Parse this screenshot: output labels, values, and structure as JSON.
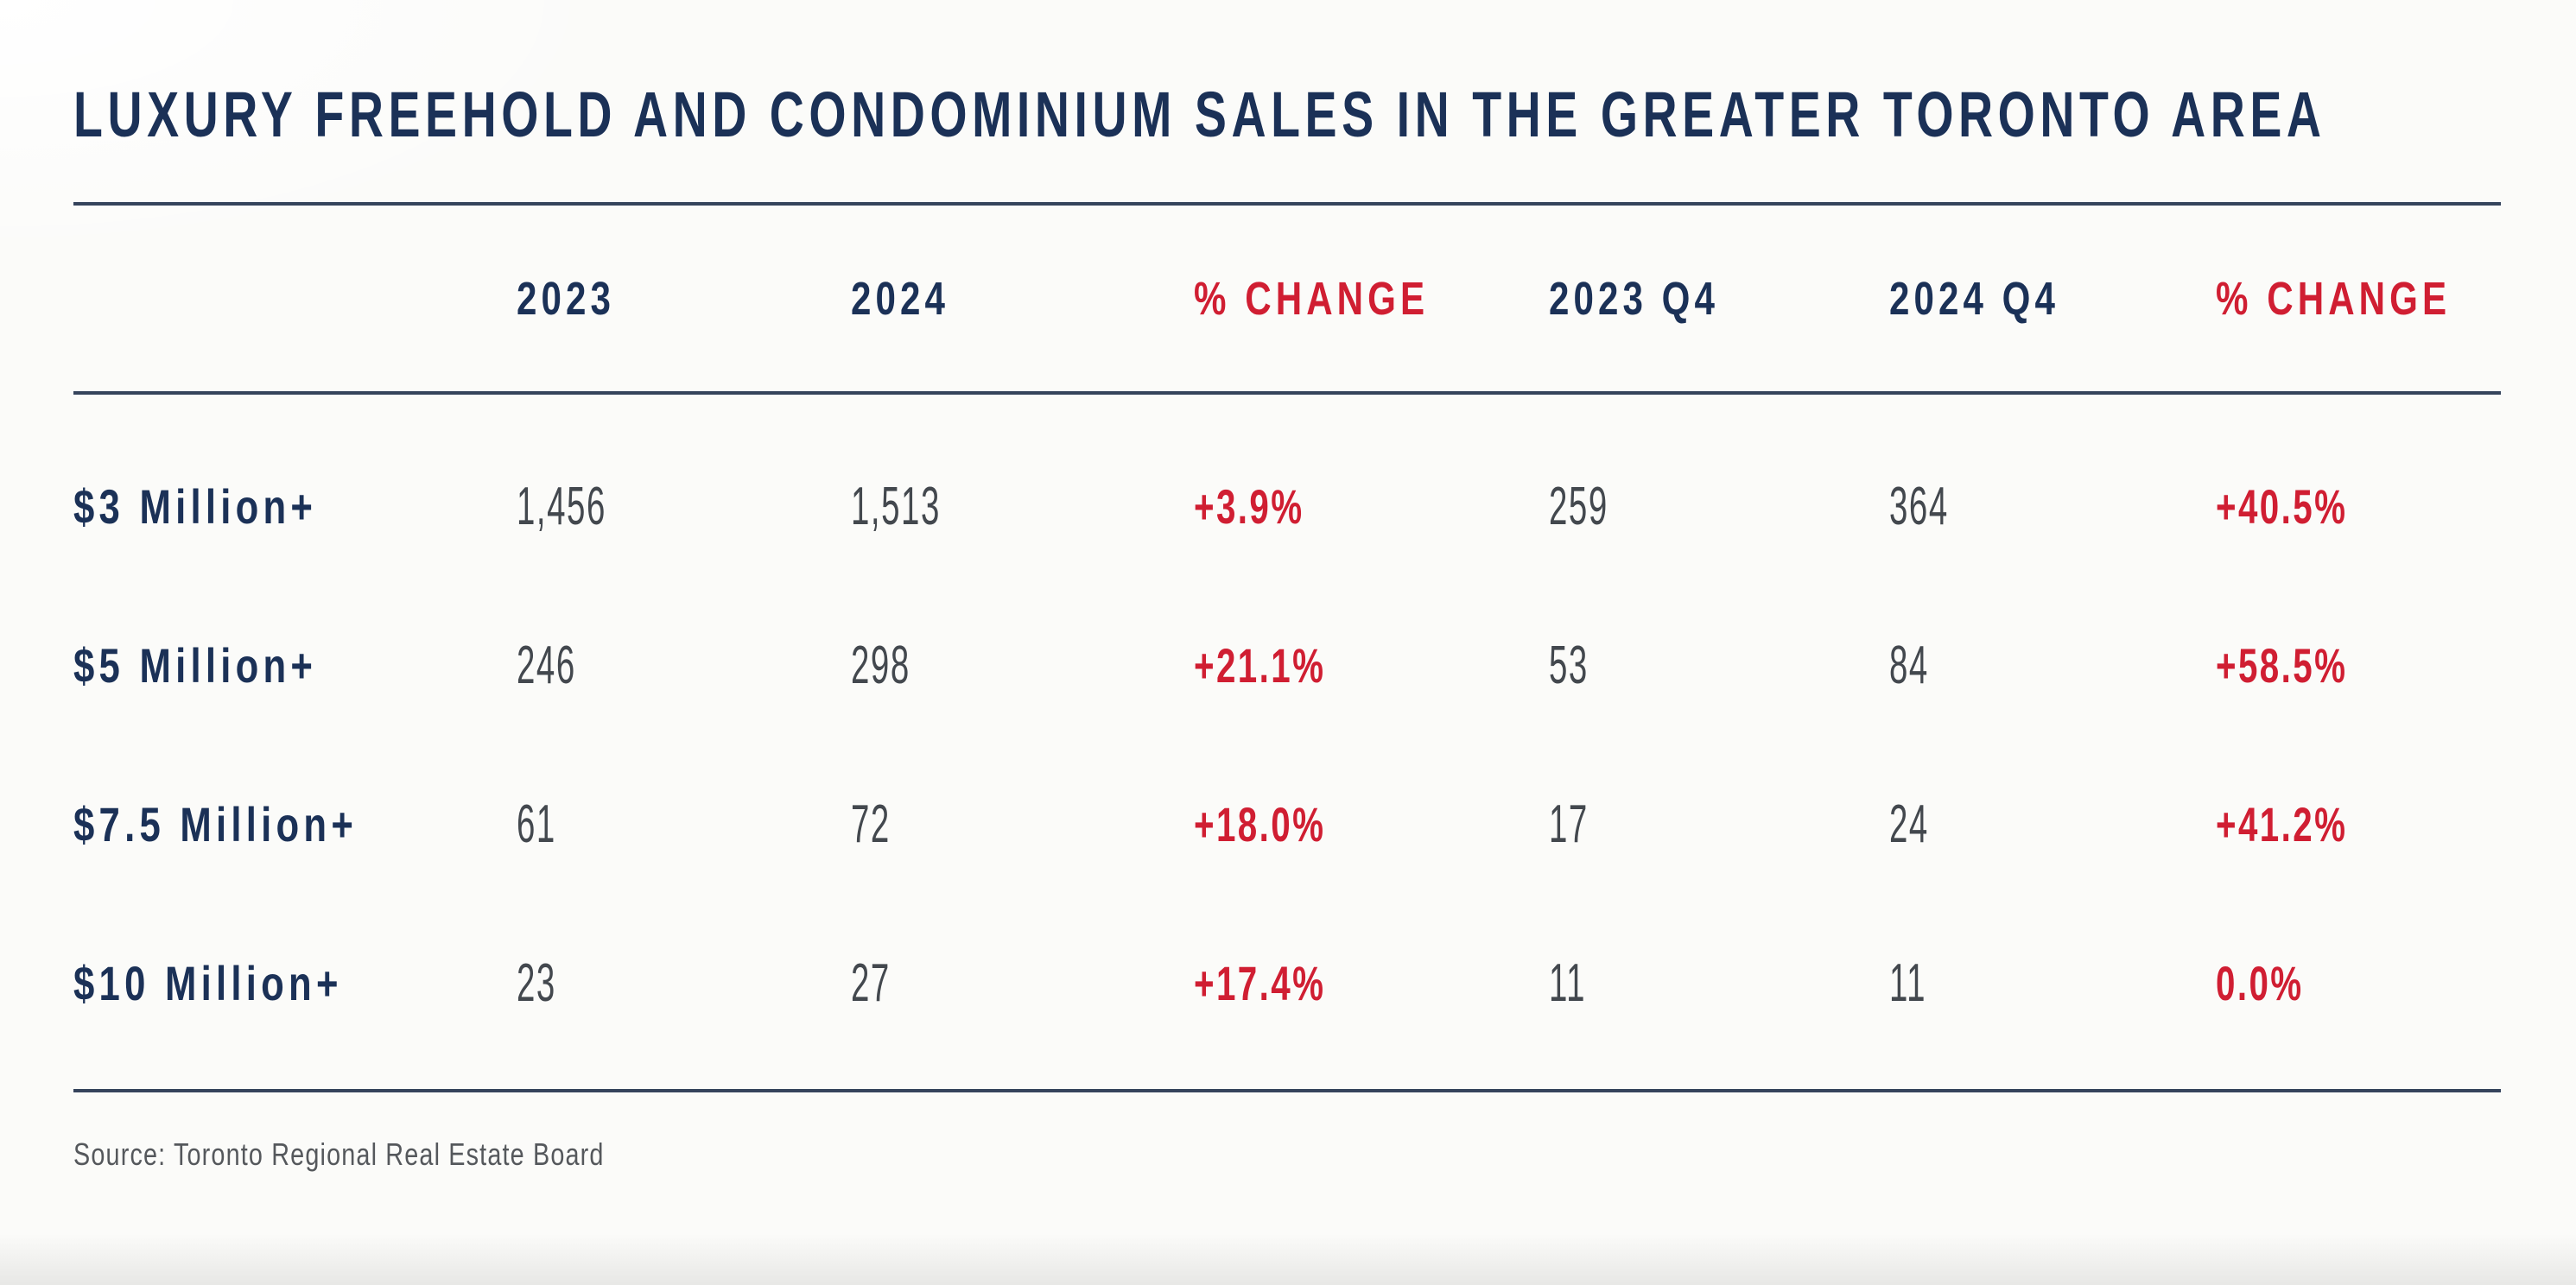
{
  "page": {
    "title": "LUXURY FREEHOLD AND CONDOMINIUM SALES IN THE GREATER TORONTO AREA",
    "source": "Source: Toronto Regional Real Estate Board"
  },
  "colors": {
    "background": "#fbfbf9",
    "navy": "#1b3157",
    "red": "#d01e32",
    "number_text": "#43484e",
    "rule": "#35445c",
    "source_text": "#55585c"
  },
  "chart_data": {
    "type": "table",
    "title": "LUXURY FREEHOLD AND CONDOMINIUM SALES IN THE GREATER TORONTO AREA",
    "columns": [
      "",
      "2023",
      "2024",
      "% CHANGE",
      "2023 Q4",
      "2024 Q4",
      "% CHANGE"
    ],
    "rows": [
      {
        "label": "$3 Million+",
        "y2023": "1,456",
        "y2024": "1,513",
        "change": "+3.9%",
        "q4_2023": "259",
        "q4_2024": "364",
        "q4_change": "+40.5%"
      },
      {
        "label": "$5 Million+",
        "y2023": "246",
        "y2024": "298",
        "change": "+21.1%",
        "q4_2023": "53",
        "q4_2024": "84",
        "q4_change": "+58.5%"
      },
      {
        "label": "$7.5 Million+",
        "y2023": "61",
        "y2024": "72",
        "change": "+18.0%",
        "q4_2023": "17",
        "q4_2024": "24",
        "q4_change": "+41.2%"
      },
      {
        "label": "$10 Million+",
        "y2023": "23",
        "y2024": "27",
        "change": "+17.4%",
        "q4_2023": "11",
        "q4_2024": "11",
        "q4_change": "0.0%"
      }
    ],
    "source": "Source: Toronto Regional Real Estate Board",
    "layout": {
      "grid": false,
      "legend": false,
      "red_columns": [
        3,
        6
      ]
    }
  }
}
